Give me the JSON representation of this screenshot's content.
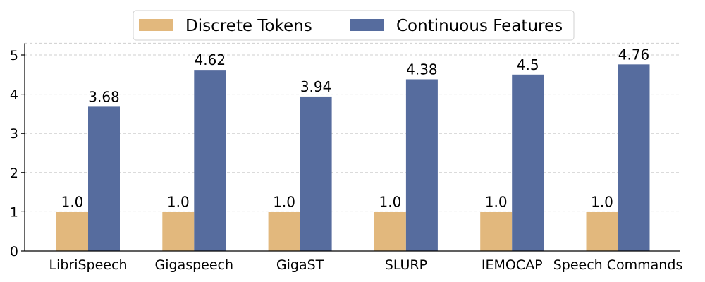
{
  "chart_data": {
    "type": "bar",
    "categories": [
      "LibriSpeech",
      "Gigaspeech",
      "GigaST",
      "SLURP",
      "IEMOCAP",
      "Speech Commands"
    ],
    "series": [
      {
        "name": "Discrete Tokens",
        "values": [
          1.0,
          1.0,
          1.0,
          1.0,
          1.0,
          1.0
        ],
        "labels": [
          "1.0",
          "1.0",
          "1.0",
          "1.0",
          "1.0",
          "1.0"
        ],
        "color": "#E2B87D"
      },
      {
        "name": "Continuous Features",
        "values": [
          3.68,
          4.62,
          3.94,
          4.38,
          4.5,
          4.76
        ],
        "labels": [
          "3.68",
          "4.62",
          "3.94",
          "4.38",
          "4.5",
          "4.76"
        ],
        "color": "#566C9E"
      }
    ],
    "title": "",
    "xlabel": "",
    "ylabel": "",
    "ylim": [
      0,
      5.3
    ],
    "yticks": [
      "0",
      "1",
      "2",
      "3",
      "4",
      "5"
    ],
    "grid": "horizontal-dashed",
    "legend_position": "top-center"
  }
}
